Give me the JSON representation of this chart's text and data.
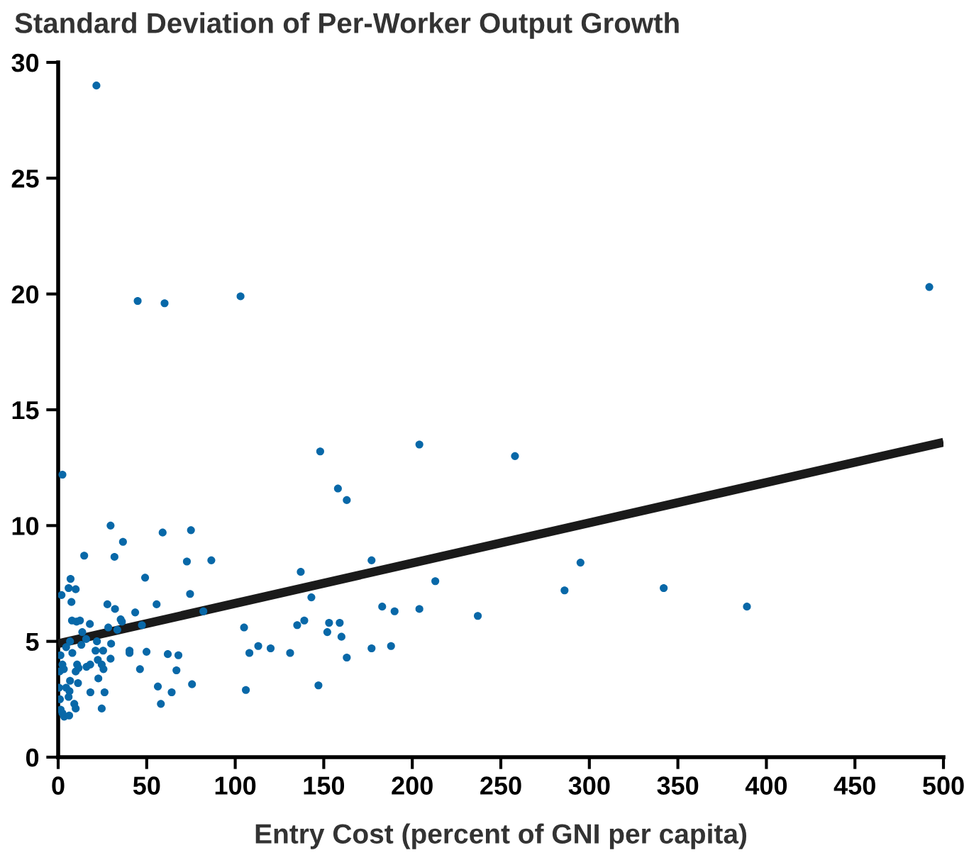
{
  "chart_data": {
    "type": "scatter",
    "title": "Standard Deviation of Per-Worker Output Growth",
    "xlabel": "Entry Cost (percent of GNI per capita)",
    "xlim": [
      0,
      500
    ],
    "xticks": [
      0,
      50,
      100,
      150,
      200,
      250,
      300,
      350,
      400,
      450,
      500
    ],
    "ylim": [
      0,
      30
    ],
    "yticks": [
      0,
      5,
      10,
      15,
      20,
      25,
      30
    ],
    "grid": false,
    "legend": false,
    "series": [
      {
        "color": "#0868a8",
        "marker": "circle",
        "x": [
          21.6,
          44.9,
          60.1,
          103,
          492,
          2.4,
          148,
          204,
          258,
          158,
          163,
          29.6,
          75,
          59,
          36.6,
          14.7,
          31.8,
          72.7,
          86.5,
          177,
          137,
          295,
          342,
          286,
          213,
          389,
          237,
          183,
          190,
          204,
          143,
          139,
          135,
          82,
          49.1,
          74.5,
          105,
          153,
          159,
          152,
          160,
          106,
          113,
          120,
          131,
          108,
          147,
          163,
          177,
          188,
          7.0,
          5.9,
          9.9,
          1.9,
          7.5,
          27.8,
          32.1,
          55.6,
          43.5,
          7.8,
          10.4,
          12.3,
          17.9,
          35.3,
          36,
          28.3,
          33.4,
          47.3,
          13.6,
          15.8,
          13.1,
          21.9,
          4.5,
          6.7,
          29.9,
          21.1,
          25.4,
          40.3,
          40.3,
          49.9,
          8.0,
          1.3,
          2.4,
          0.8,
          3.2,
          10.7,
          11.5,
          9.9,
          16,
          18.1,
          22.4,
          24.6,
          25.6,
          29.6,
          22.7,
          11.2,
          6.7,
          0.5,
          4.5,
          6.4,
          18.2,
          26.2,
          1.0,
          5.9,
          9.1,
          9.9,
          1.4,
          2.4,
          3.4,
          6.2,
          24.6,
          46.2,
          56.3,
          58,
          64.1,
          61.9,
          67.9,
          66.8,
          75.6
        ],
        "values": [
          29.0,
          19.7,
          19.6,
          19.9,
          20.3,
          12.2,
          13.2,
          13.5,
          13.0,
          11.6,
          11.1,
          10.0,
          9.8,
          9.7,
          9.3,
          8.7,
          8.65,
          8.45,
          8.5,
          8.5,
          8.0,
          8.4,
          7.3,
          7.2,
          7.6,
          6.5,
          6.1,
          6.5,
          6.3,
          6.4,
          6.9,
          5.9,
          5.7,
          6.3,
          7.75,
          7.05,
          5.6,
          5.8,
          5.8,
          5.4,
          5.2,
          2.9,
          4.8,
          4.7,
          4.5,
          4.5,
          3.1,
          4.3,
          4.7,
          4.8,
          7.7,
          7.3,
          7.25,
          7.0,
          6.7,
          6.6,
          6.4,
          6.6,
          6.25,
          5.9,
          5.85,
          5.9,
          5.75,
          5.95,
          5.85,
          5.6,
          5.5,
          5.7,
          5.4,
          5.1,
          4.85,
          5.0,
          4.75,
          5.0,
          4.9,
          4.6,
          4.6,
          4.6,
          4.5,
          4.55,
          4.5,
          4.4,
          4.0,
          3.7,
          3.8,
          4.0,
          3.85,
          3.7,
          3.9,
          4.0,
          4.2,
          4.0,
          3.8,
          4.25,
          3.4,
          3.2,
          3.3,
          3.0,
          3.0,
          2.85,
          2.8,
          2.8,
          2.5,
          2.6,
          2.3,
          2.1,
          2.05,
          1.9,
          1.75,
          1.8,
          2.1,
          3.8,
          3.05,
          2.3,
          2.8,
          4.45,
          4.4,
          3.75,
          3.15
        ]
      },
      {
        "type": "line",
        "color": "#1a1a1a",
        "line_style": "solid",
        "marker": "none",
        "x": [
          0,
          500
        ],
        "values": [
          4.9,
          13.6
        ]
      }
    ]
  }
}
